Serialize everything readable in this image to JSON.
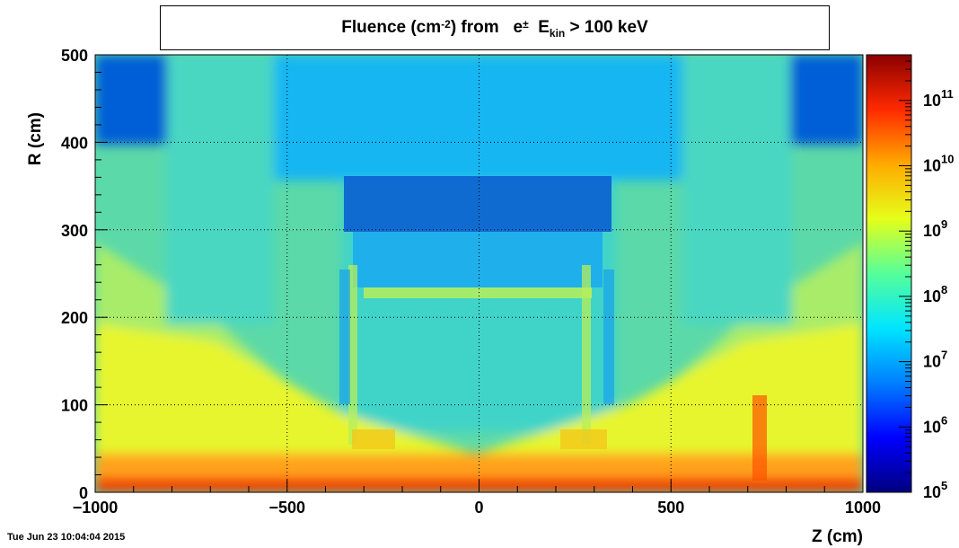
{
  "chart_data": {
    "type": "heatmap",
    "title_parts": {
      "prefix": "Fluence (cm",
      "exponent": "-2",
      "middle": ") from",
      "particle": "e",
      "particle_charge": "±",
      "energy": "E",
      "energy_sub": "kin",
      "cut": "> 100 keV"
    },
    "xlabel": "Z (cm)",
    "ylabel": "R (cm)",
    "xlim": [
      -1000,
      1000
    ],
    "ylim": [
      0,
      500
    ],
    "x_ticks": [
      -1000,
      -500,
      0,
      500,
      1000
    ],
    "x_tick_labels": [
      "−1000",
      "−500",
      "0",
      "500",
      "1000"
    ],
    "y_ticks": [
      0,
      100,
      200,
      300,
      400,
      500
    ],
    "y_tick_labels": [
      "0",
      "100",
      "200",
      "300",
      "400",
      "500"
    ],
    "grid": true,
    "color_scale": {
      "log": true,
      "range": [
        100000,
        500000000000
      ],
      "tick_values": [
        100000,
        1000000,
        10000000,
        100000000,
        1000000000,
        10000000000,
        100000000000
      ],
      "tick_labels": [
        {
          "base": "10",
          "exp": "5"
        },
        {
          "base": "10",
          "exp": "6"
        },
        {
          "base": "10",
          "exp": "7"
        },
        {
          "base": "10",
          "exp": "8"
        },
        {
          "base": "10",
          "exp": "9"
        },
        {
          "base": "10",
          "exp": "10"
        },
        {
          "base": "10",
          "exp": "11"
        }
      ],
      "palette": [
        "#00007f",
        "#0000ff",
        "#007fff",
        "#00e5ff",
        "#55ff9a",
        "#e5ff1a",
        "#ffaa00",
        "#ff2a00",
        "#8b0000"
      ]
    }
  },
  "footer": {
    "date": "Tue Jun 23 10:04:04 2015"
  }
}
